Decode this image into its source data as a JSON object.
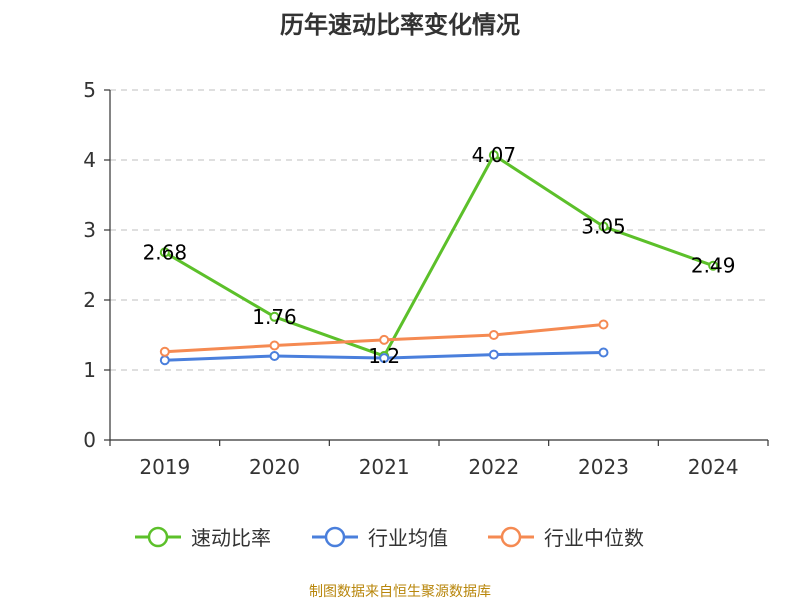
{
  "source_note": "制图数据来自恒生聚源数据库",
  "chart_data": {
    "type": "line",
    "title": "历年速动比率变化情况",
    "categories": [
      "2019",
      "2020",
      "2021",
      "2022",
      "2023",
      "2024"
    ],
    "ylim": [
      0,
      5
    ],
    "yticks": [
      "0",
      "1",
      "2",
      "3",
      "4",
      "5"
    ],
    "grid": true,
    "legend_position": "bottom",
    "series": [
      {
        "name": "速动比率",
        "color": "#5cc02a",
        "values": [
          2.68,
          1.76,
          1.2,
          4.07,
          3.05,
          2.49
        ],
        "labels": [
          "2.68",
          "1.76",
          "1.2",
          "4.07",
          "3.05",
          "2.49"
        ]
      },
      {
        "name": "行业均值",
        "color": "#4a7fdc",
        "values": [
          1.14,
          1.2,
          1.17,
          1.22,
          1.25,
          null
        ]
      },
      {
        "name": "行业中位数",
        "color": "#f58a52",
        "values": [
          1.26,
          1.35,
          1.43,
          1.5,
          1.65,
          null
        ]
      }
    ]
  }
}
